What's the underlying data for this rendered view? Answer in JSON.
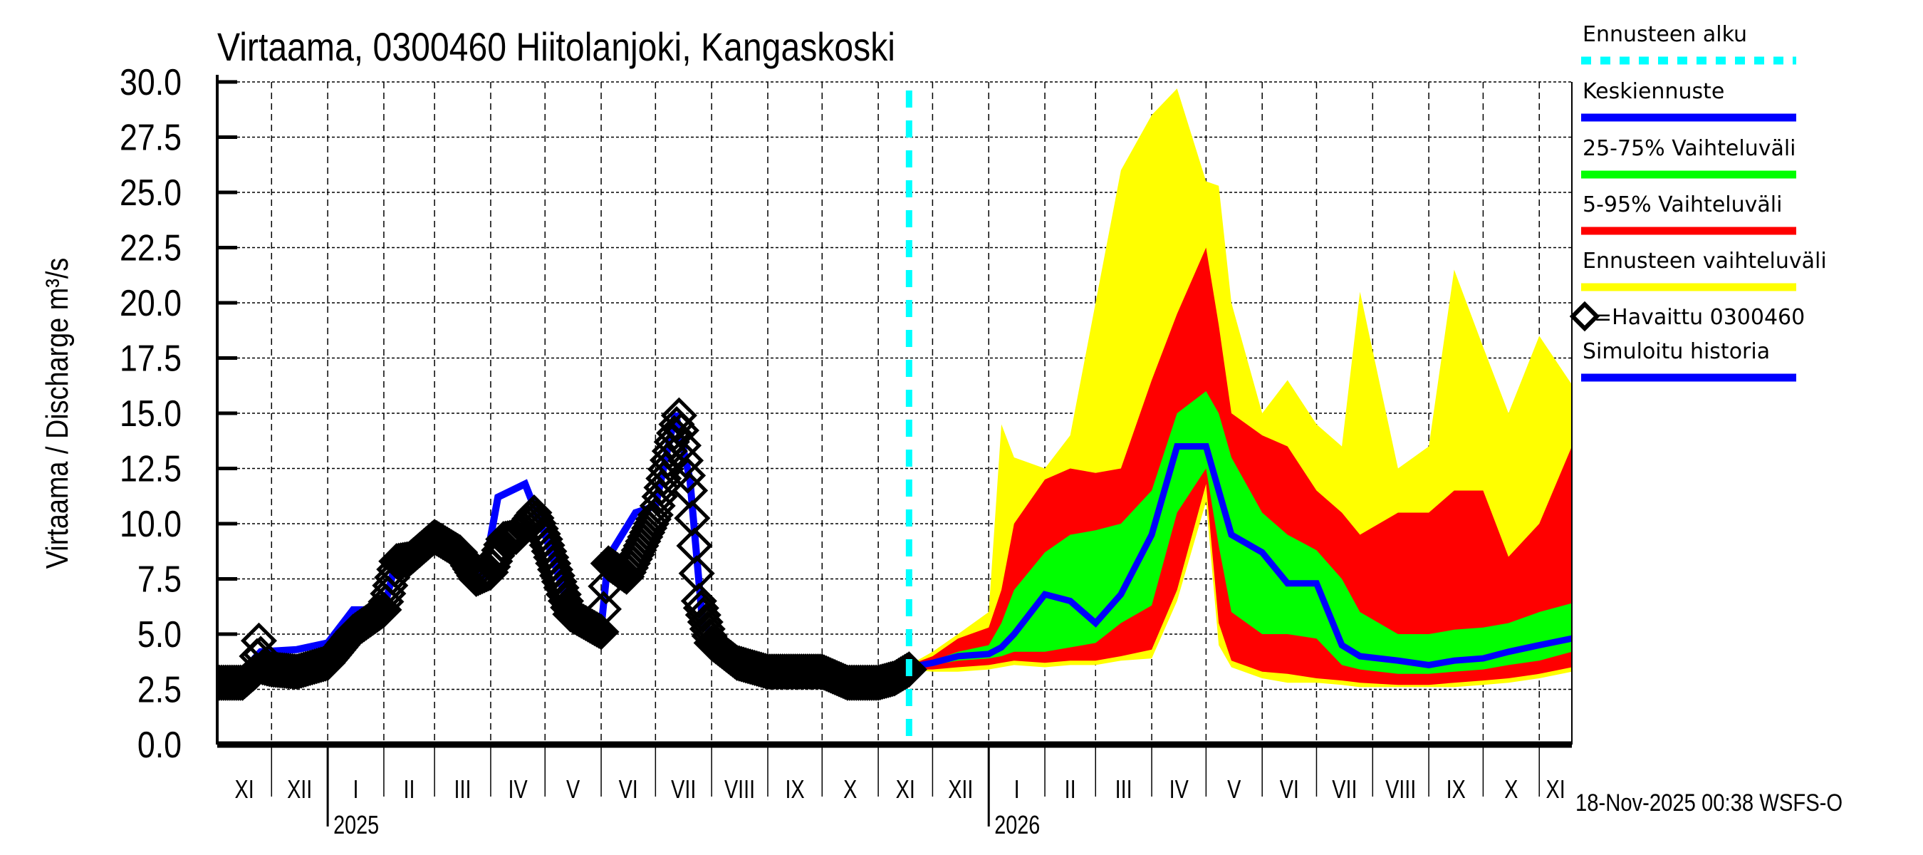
{
  "chart_data": {
    "type": "area",
    "title": "Virtaama, 0300460 Hiitolanjoki, Kangaskoski",
    "ylabel": "Virtaama / Discharge   m³/s",
    "ylim": [
      0,
      30
    ],
    "yticks": [
      "0.0",
      "2.5",
      "5.0",
      "7.5",
      "10.0",
      "12.5",
      "15.0",
      "17.5",
      "20.0",
      "22.5",
      "25.0",
      "27.5",
      "30.0"
    ],
    "xlim": [
      "2024-11-01",
      "2026-11-19"
    ],
    "month_labels": [
      "XI",
      "XII",
      "I",
      "II",
      "III",
      "IV",
      "V",
      "VI",
      "VII",
      "VIII",
      "IX",
      "X",
      "XI",
      "XII",
      "I",
      "II",
      "III",
      "IV",
      "V",
      "VI",
      "VII",
      "VIII",
      "IX",
      "X",
      "XI"
    ],
    "year_labels": [
      {
        "label": "2025",
        "date": "2025-01-01"
      },
      {
        "label": "2026",
        "date": "2026-01-01"
      }
    ],
    "grid": true,
    "forecast_start": "2025-11-18",
    "timestamp": "18-Nov-2025 00:38 WSFS-O",
    "colors": {
      "forecast_start": "#00ffff",
      "median": "#0000ff",
      "p25_75": "#00ff00",
      "p5_95": "#ff0000",
      "range": "#ffff00",
      "observed": "#000000",
      "simulated": "#0000ff"
    },
    "legend": [
      {
        "label": "Ennusteen alku",
        "style": "dashed",
        "color": "#00ffff"
      },
      {
        "label": "Keskiennuste",
        "style": "line",
        "color": "#0000ff"
      },
      {
        "label": "25-75% Vaihteluväli",
        "style": "line",
        "color": "#00ff00"
      },
      {
        "label": "5-95% Vaihteluväli",
        "style": "line",
        "color": "#ff0000"
      },
      {
        "label": "Ennusteen vaihteluväli",
        "style": "line",
        "color": "#ffff00"
      },
      {
        "label": "=Havaittu 0300460",
        "style": "diamond",
        "color": "#000000"
      },
      {
        "label": "Simuloitu historia",
        "style": "line",
        "color": "#0000ff"
      }
    ],
    "observed": [
      [
        "2024-11-01",
        2.8
      ],
      [
        "2024-11-15",
        2.8
      ],
      [
        "2024-11-22",
        3.3
      ],
      [
        "2024-11-24",
        4.7
      ],
      [
        "2024-11-26",
        3.5
      ],
      [
        "2024-12-01",
        3.4
      ],
      [
        "2024-12-15",
        3.3
      ],
      [
        "2025-01-01",
        3.7
      ],
      [
        "2025-01-15",
        5.1
      ],
      [
        "2025-02-01",
        6.1
      ],
      [
        "2025-02-08",
        8.3
      ],
      [
        "2025-02-15",
        8.4
      ],
      [
        "2025-03-01",
        9.4
      ],
      [
        "2025-03-15",
        8.7
      ],
      [
        "2025-03-24",
        7.5
      ],
      [
        "2025-04-01",
        7.8
      ],
      [
        "2025-04-08",
        9.3
      ],
      [
        "2025-04-15",
        9.4
      ],
      [
        "2025-04-25",
        10.5
      ],
      [
        "2025-05-01",
        9.3
      ],
      [
        "2025-05-10",
        7.1
      ],
      [
        "2025-05-15",
        5.9
      ],
      [
        "2025-06-01",
        5.1
      ],
      [
        "2025-06-05",
        8.2
      ],
      [
        "2025-06-15",
        7.6
      ],
      [
        "2025-07-01",
        10.4
      ],
      [
        "2025-07-10",
        13.7
      ],
      [
        "2025-07-14",
        14.9
      ],
      [
        "2025-07-20",
        11.5
      ],
      [
        "2025-07-25",
        6.5
      ],
      [
        "2025-08-01",
        4.6
      ],
      [
        "2025-08-15",
        3.7
      ],
      [
        "2025-09-01",
        3.3
      ],
      [
        "2025-09-15",
        3.3
      ],
      [
        "2025-10-01",
        3.3
      ],
      [
        "2025-10-15",
        2.8
      ],
      [
        "2025-11-01",
        2.8
      ],
      [
        "2025-11-10",
        3.0
      ],
      [
        "2025-11-18",
        3.4
      ]
    ],
    "simulated": [
      [
        "2024-11-01",
        3.0
      ],
      [
        "2024-11-15",
        3.3
      ],
      [
        "2024-11-25",
        4.2
      ],
      [
        "2024-12-15",
        4.3
      ],
      [
        "2025-01-01",
        4.6
      ],
      [
        "2025-01-15",
        6.1
      ],
      [
        "2025-02-01",
        6.1
      ],
      [
        "2025-02-08",
        8.4
      ],
      [
        "2025-03-01",
        9.1
      ],
      [
        "2025-03-15",
        8.8
      ],
      [
        "2025-03-28",
        7.6
      ],
      [
        "2025-04-05",
        11.2
      ],
      [
        "2025-04-20",
        11.8
      ],
      [
        "2025-05-01",
        9.5
      ],
      [
        "2025-05-15",
        6.0
      ],
      [
        "2025-06-01",
        5.3
      ],
      [
        "2025-06-05",
        8.5
      ],
      [
        "2025-06-20",
        10.5
      ],
      [
        "2025-07-01",
        10.8
      ],
      [
        "2025-07-12",
        15.0
      ],
      [
        "2025-07-20",
        12.0
      ],
      [
        "2025-07-27",
        5.5
      ],
      [
        "2025-08-15",
        3.8
      ],
      [
        "2025-09-15",
        3.3
      ],
      [
        "2025-10-15",
        2.8
      ],
      [
        "2025-11-18",
        3.3
      ]
    ],
    "forecast": {
      "dates": [
        "2025-11-18",
        "2025-12-01",
        "2025-12-15",
        "2026-01-01",
        "2026-01-08",
        "2026-01-15",
        "2026-02-01",
        "2026-02-15",
        "2026-03-01",
        "2026-03-15",
        "2026-04-01",
        "2026-04-15",
        "2026-05-01",
        "2026-05-08",
        "2026-05-15",
        "2026-06-01",
        "2026-06-15",
        "2026-07-01",
        "2026-07-15",
        "2026-07-25",
        "2026-08-15",
        "2026-09-01",
        "2026-09-15",
        "2026-10-01",
        "2026-10-15",
        "2026-11-01",
        "2026-11-19"
      ],
      "max": [
        3.6,
        4.2,
        5.0,
        6.0,
        14.5,
        13.0,
        12.5,
        14.0,
        20.0,
        26.0,
        28.5,
        29.7,
        25.5,
        25.3,
        20.0,
        15.0,
        16.5,
        14.5,
        13.5,
        20.5,
        12.5,
        13.5,
        21.5,
        18.0,
        15.0,
        18.5,
        16.3
      ],
      "p95": [
        3.6,
        4.0,
        4.8,
        5.3,
        7.0,
        10.0,
        12.0,
        12.5,
        12.3,
        12.5,
        16.5,
        19.5,
        22.5,
        19.0,
        15.0,
        14.0,
        13.5,
        11.5,
        10.5,
        9.5,
        10.5,
        10.5,
        11.5,
        11.5,
        8.5,
        10.0,
        13.5
      ],
      "p75": [
        3.5,
        3.8,
        4.2,
        4.5,
        5.5,
        7.0,
        8.7,
        9.5,
        9.7,
        10.0,
        11.5,
        15.0,
        16.0,
        15.0,
        13.0,
        10.5,
        9.5,
        8.8,
        7.5,
        6.0,
        5.0,
        5.0,
        5.2,
        5.3,
        5.5,
        6.0,
        6.4
      ],
      "median": [
        3.5,
        3.7,
        4.0,
        4.1,
        4.4,
        5.0,
        6.8,
        6.5,
        5.5,
        6.8,
        9.5,
        13.5,
        13.5,
        11.5,
        9.5,
        8.7,
        7.3,
        7.3,
        4.5,
        4.0,
        3.8,
        3.6,
        3.8,
        3.9,
        4.2,
        4.5,
        4.8
      ],
      "p25": [
        3.5,
        3.6,
        3.8,
        3.9,
        4.0,
        4.2,
        4.2,
        4.4,
        4.6,
        5.5,
        6.3,
        10.5,
        12.5,
        9.0,
        6.0,
        5.0,
        5.0,
        4.8,
        3.6,
        3.4,
        3.2,
        3.2,
        3.3,
        3.4,
        3.6,
        3.8,
        4.2
      ],
      "p5": [
        3.4,
        3.4,
        3.5,
        3.6,
        3.7,
        3.8,
        3.7,
        3.8,
        3.8,
        4.0,
        4.3,
        7.0,
        11.8,
        5.5,
        3.8,
        3.3,
        3.2,
        3.0,
        2.9,
        2.8,
        2.7,
        2.7,
        2.8,
        2.9,
        3.0,
        3.2,
        3.5
      ],
      "min": [
        3.4,
        3.3,
        3.3,
        3.4,
        3.5,
        3.6,
        3.5,
        3.6,
        3.6,
        3.8,
        3.9,
        6.5,
        11.0,
        4.5,
        3.5,
        3.0,
        2.8,
        2.8,
        2.7,
        2.6,
        2.6,
        2.6,
        2.6,
        2.7,
        2.8,
        3.0,
        3.3
      ]
    }
  }
}
